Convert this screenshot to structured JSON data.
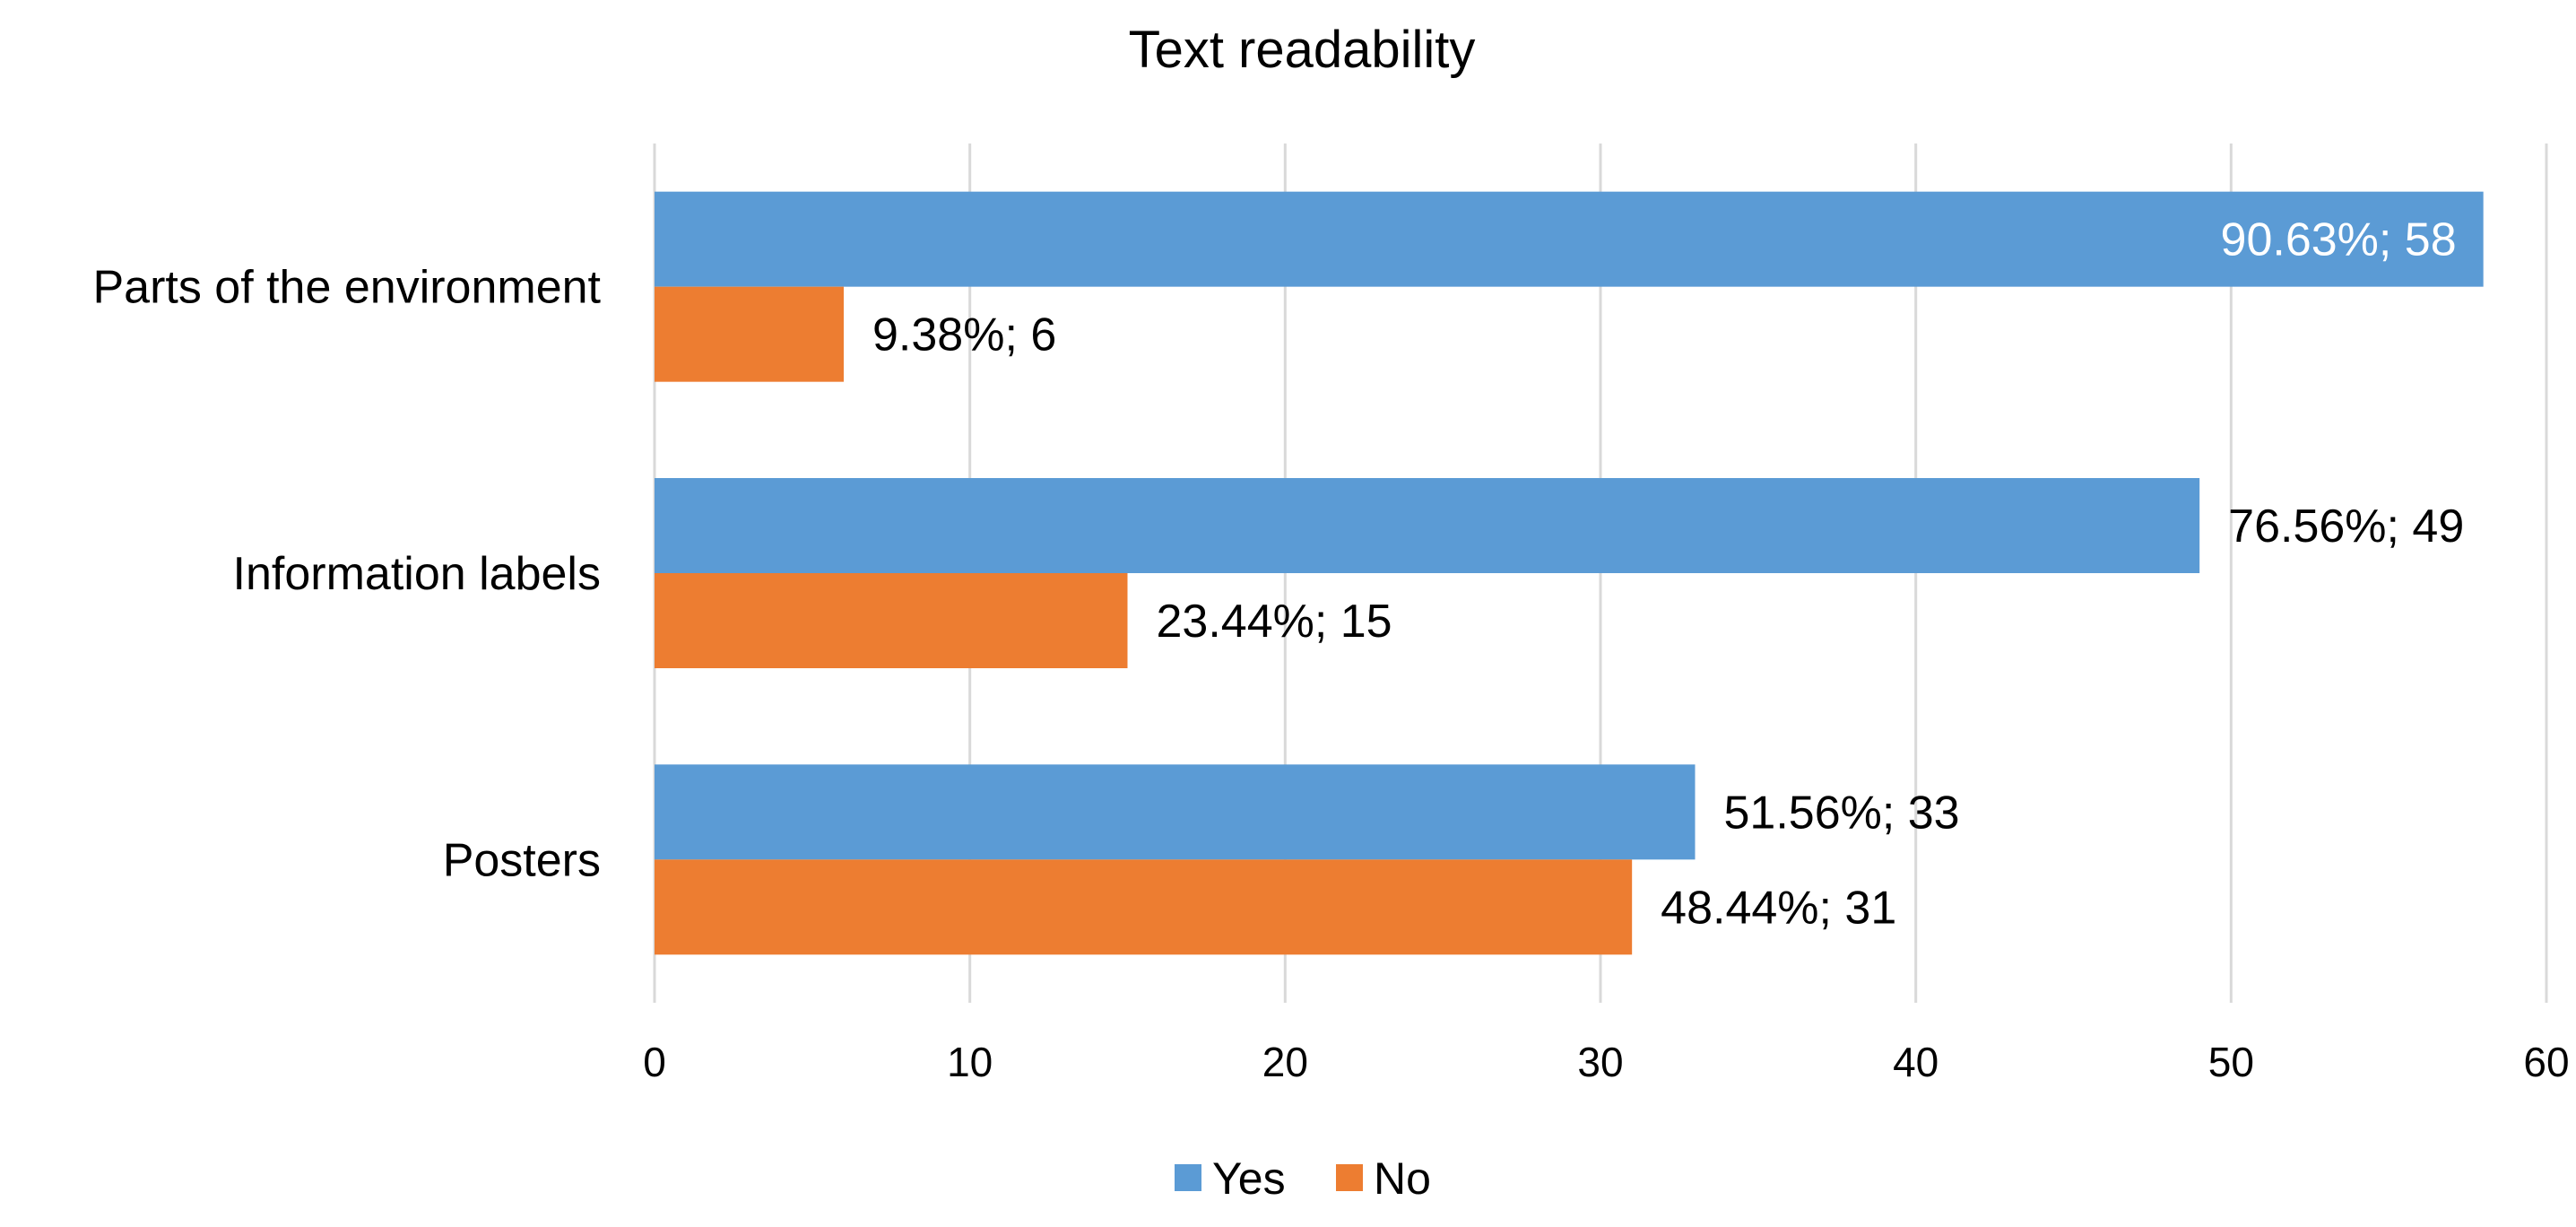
{
  "chart_data": {
    "type": "bar",
    "orientation": "horizontal",
    "title": "Text readability",
    "xlabel": "",
    "ylabel": "",
    "categories": [
      "Parts of the environment",
      "Information labels",
      "Posters"
    ],
    "series": [
      {
        "name": "Yes",
        "color": "#5B9BD5",
        "values": [
          58,
          49,
          33
        ],
        "labels": [
          "90.63%; 58",
          "76.56%; 49",
          "51.56%; 33"
        ]
      },
      {
        "name": "No",
        "color": "#ED7D31",
        "values": [
          6,
          15,
          31
        ],
        "labels": [
          "9.38%; 6",
          "23.44%; 15",
          "48.44%; 31"
        ]
      }
    ],
    "xlim": [
      0,
      60
    ],
    "xticks": [
      0,
      10,
      20,
      30,
      40,
      50,
      60
    ],
    "grid": "vertical",
    "legend": "bottom-center"
  }
}
